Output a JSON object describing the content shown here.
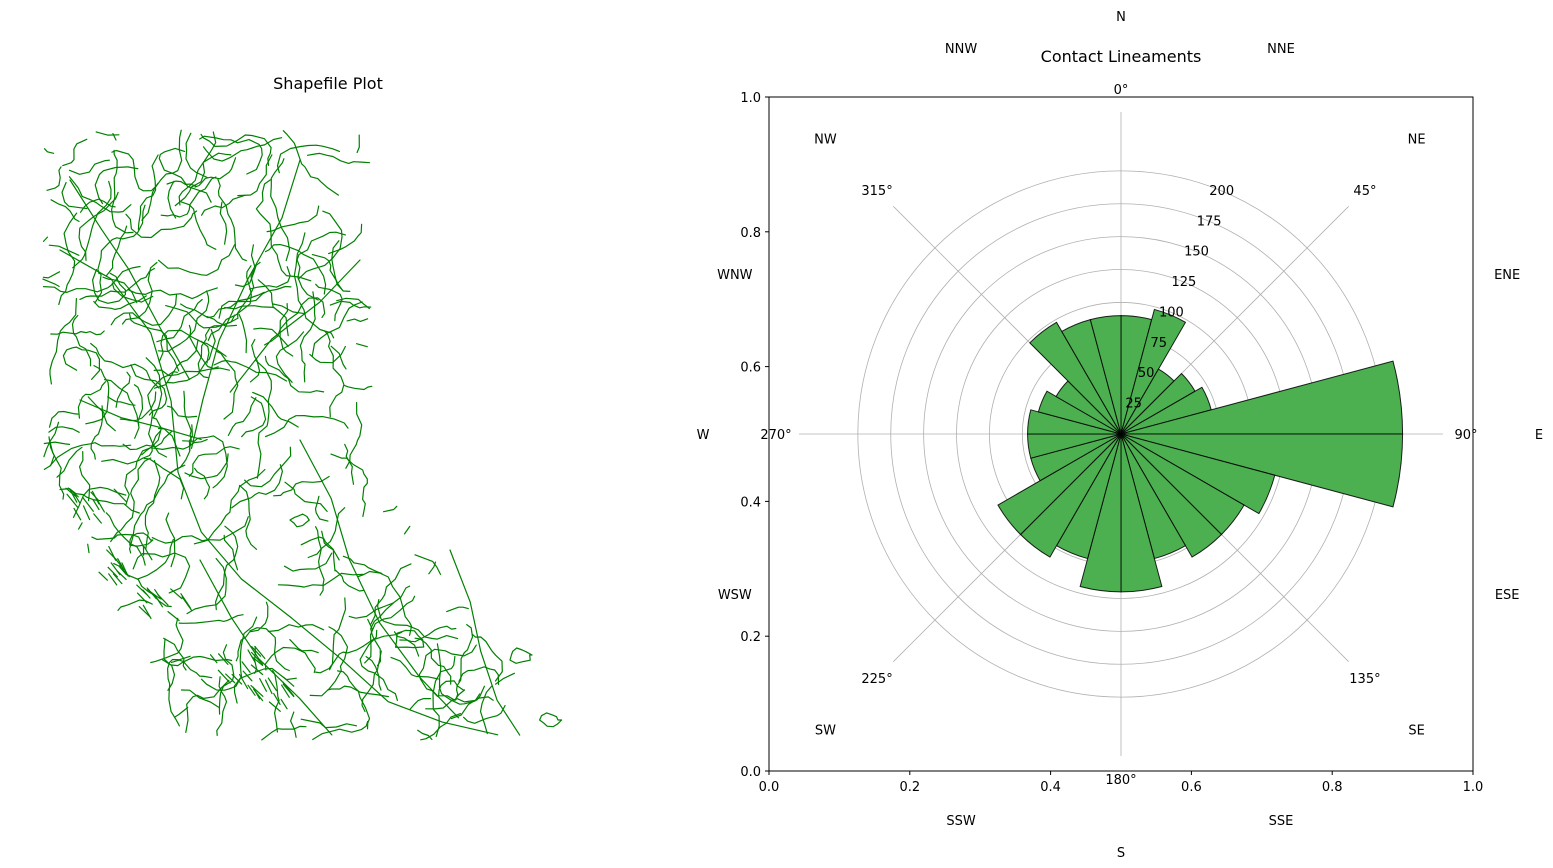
{
  "figure": {
    "left_panel": {
      "title": "Shapefile Plot",
      "line_color": "#008000"
    },
    "right_panel": {
      "title": "Contact Lineaments",
      "cartesian_axes": {
        "xticks": [
          "0.0",
          "0.2",
          "0.4",
          "0.6",
          "0.8",
          "1.0"
        ],
        "yticks": [
          "0.0",
          "0.2",
          "0.4",
          "0.6",
          "0.8",
          "1.0"
        ]
      },
      "compass_labels": [
        "N",
        "NNE",
        "NE",
        "ENE",
        "E",
        "ESE",
        "SE",
        "SSE",
        "S",
        "SSW",
        "SW",
        "WSW",
        "W",
        "WNW",
        "NW",
        "NNW"
      ],
      "angle_labels": [
        "0°",
        "45°",
        "90°",
        "135°",
        "180°",
        "225°",
        "270°",
        "315°"
      ],
      "radial_ticks": [
        "25",
        "50",
        "75",
        "100",
        "125",
        "150",
        "175",
        "200"
      ]
    }
  },
  "chart_data": [
    {
      "type": "line",
      "title": "Shapefile Plot",
      "note_series": "geologic contact polylines (map linework, no axes)",
      "color": "#008000"
    },
    {
      "type": "bar",
      "subtype": "polar-rose",
      "title": "Contact Lineaments",
      "theta_direction": "clockwise",
      "theta_zero": "N",
      "bin_width_deg": 15,
      "bin_centers_deg": [
        7.5,
        22.5,
        37.5,
        52.5,
        67.5,
        82.5,
        97.5,
        112.5,
        127.5,
        142.5,
        157.5,
        172.5,
        187.5,
        202.5,
        217.5,
        232.5,
        247.5,
        262.5,
        277.5,
        292.5,
        307.5,
        322.5,
        337.5,
        352.5
      ],
      "values": [
        90,
        98,
        57,
        65,
        71,
        214,
        214,
        121,
        108,
        108,
        98,
        120,
        120,
        98,
        108,
        108,
        71,
        71,
        71,
        65,
        57,
        98,
        90,
        90
      ],
      "rlim": [
        0,
        200
      ],
      "radial_tick_values": [
        25,
        50,
        75,
        100,
        125,
        150,
        175,
        200
      ],
      "bar_color": "#4caf50",
      "edge_color": "#000000",
      "grid": true
    }
  ]
}
